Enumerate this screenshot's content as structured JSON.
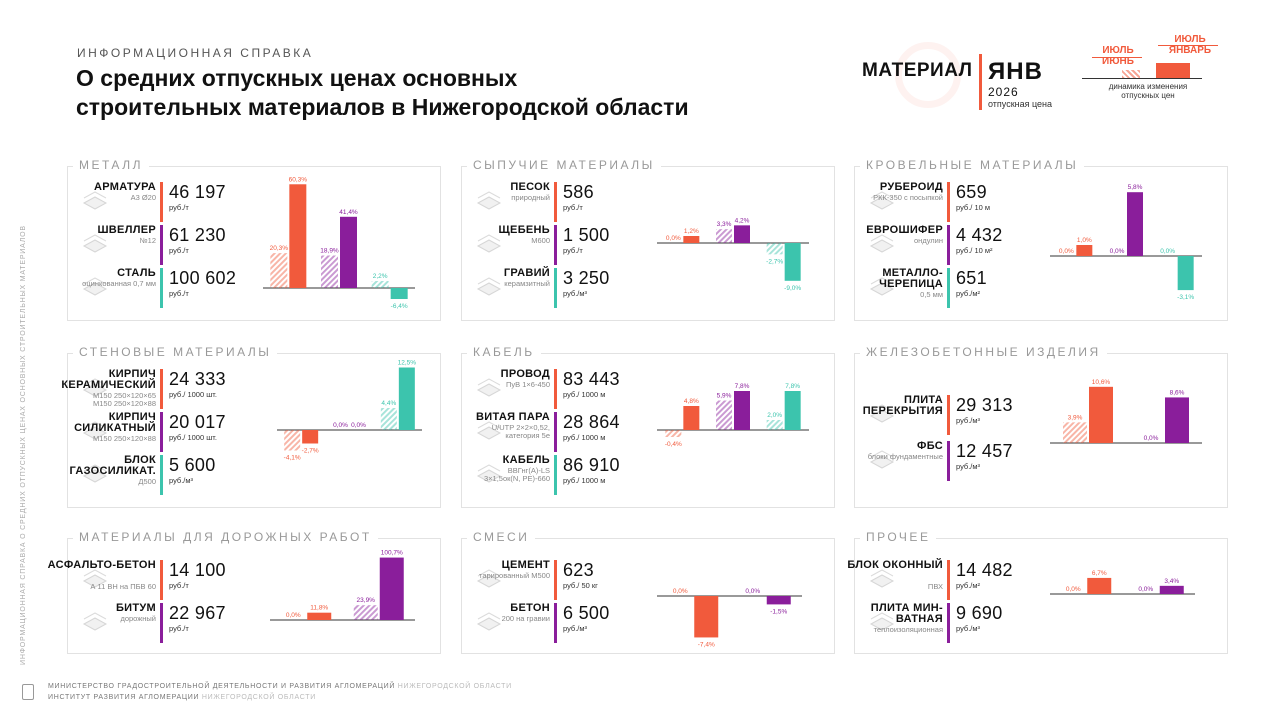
{
  "header": {
    "kicker": "ИНФОРМАЦИОННАЯ СПРАВКА",
    "title_line1": "О средних отпускных ценах основных",
    "title_line2": "строительных материалов в Нижегородской области"
  },
  "vertical_text": "ИНФОРМАЦИОННАЯ СПРАВКА О СРЕДНИХ ОТПУСКНЫХ ЦЕНАХ ОСНОВНЫХ СТРОИТЕЛЬНЫХ МАТЕРИАЛОВ",
  "legend": {
    "material_label": "МАТЕРИАЛ",
    "month": "ЯНВ",
    "year": "2026",
    "price_label": "отпускная цена",
    "top_label_1": "ИЮЛЬ",
    "top_label_2": "ЯНВАРЬ",
    "left_label_1": "ИЮЛЬ",
    "left_label_2": "ИЮНЬ",
    "note": "динамика изменения отпускных цен"
  },
  "colors": {
    "orange": "#f15a3c",
    "purple": "#8a1e9b",
    "teal": "#3cc4ad"
  },
  "footer": {
    "line1_dark": "МИНИСТЕРСТВО ГРАДОСТРОИТЕЛЬНОЙ ДЕЯТЕЛЬНОСТИ И РАЗВИТИЯ АГЛОМЕРАЦИЙ",
    "line1_light": "НИЖЕГОРОДСКОЙ ОБЛАСТИ",
    "line2_dark": "ИНСТИТУТ РАЗВИТИЯ АГЛОМЕРАЦИИ",
    "line2_light": "НИЖЕГОРОДСКОЙ ОБЛАСТИ"
  },
  "panels": [
    {
      "title": "МЕТАЛЛ",
      "items": [
        {
          "name": "АРМАТУРА",
          "sub": "А3 Ø20",
          "value": "46 197",
          "unit": "руб./т",
          "icon": "rebar-icon"
        },
        {
          "name": "ШВЕЛЛЕР",
          "sub": "№12",
          "value": "61 230",
          "unit": "руб./т",
          "icon": "channel-icon"
        },
        {
          "name": "СТАЛЬ",
          "sub": "оцинкованная 0,7 мм",
          "value": "100 602",
          "unit": "руб./т",
          "icon": "steel-sheet-icon"
        }
      ]
    },
    {
      "title": "СЫПУЧИЕ МАТЕРИАЛЫ",
      "items": [
        {
          "name": "ПЕСОК",
          "sub": "природный",
          "value": "586",
          "unit": "руб./т",
          "icon": "sand-icon"
        },
        {
          "name": "ЩЕБЕНЬ",
          "sub": "М600",
          "value": "1 500",
          "unit": "руб./т",
          "icon": "gravel-icon"
        },
        {
          "name": "ГРАВИЙ",
          "sub": "керамзитный",
          "value": "3 250",
          "unit": "руб./м³",
          "icon": "expanded-clay-icon"
        }
      ]
    },
    {
      "title": "КРОВЕЛЬНЫЕ МАТЕРИАЛЫ",
      "items": [
        {
          "name": "РУБЕРОИД",
          "sub": "РКК-350 с посыпкой",
          "value": "659",
          "unit": "руб./ 10 м",
          "icon": "roll-roofing-icon"
        },
        {
          "name": "ЕВРОШИФЕР",
          "sub": "ондулин",
          "value": "4 432",
          "unit": "руб./ 10 м²",
          "icon": "ondulin-icon"
        },
        {
          "name": "МЕТАЛЛО-ЧЕРЕПИЦА",
          "sub": "0,5 мм",
          "value": "651",
          "unit": "руб./м²",
          "icon": "metal-tile-icon"
        }
      ]
    },
    {
      "title": "СТЕНОВЫЕ МАТЕРИАЛЫ",
      "items": [
        {
          "name": "КИРПИЧ КЕРАМИЧЕСКИЙ",
          "sub": "М150 250×120×65 М150 250×120×88",
          "value": "24 333",
          "unit": "руб./ 1000 шт.",
          "icon": "brick-icon"
        },
        {
          "name": "КИРПИЧ СИЛИКАТНЫЙ",
          "sub": "М150 250×120×88",
          "value": "20 017",
          "unit": "руб./ 1000 шт.",
          "icon": "silicate-brick-icon"
        },
        {
          "name": "БЛОК ГАЗОСИЛИКАТ.",
          "sub": "Д500",
          "value": "5 600",
          "unit": "руб./м³",
          "icon": "aerated-block-icon"
        }
      ]
    },
    {
      "title": "КАБЕЛЬ",
      "items": [
        {
          "name": "ПРОВОД",
          "sub": "ПуВ 1×6-450",
          "value": "83 443",
          "unit": "руб./ 1000 м",
          "icon": "wire-icon"
        },
        {
          "name": "ВИТАЯ ПАРА",
          "sub": "U/UTP 2×2×0,52, категория 5е",
          "value": "28 864",
          "unit": "руб./ 1000 м",
          "icon": "twisted-pair-icon"
        },
        {
          "name": "КАБЕЛЬ",
          "sub": "ВВГнг(А)-LS 3×1,5ок(N, PE)-660",
          "value": "86 910",
          "unit": "руб./ 1000 м",
          "icon": "cable-icon"
        }
      ]
    },
    {
      "title": "ЖЕЛЕЗОБЕТОННЫЕ ИЗДЕЛИЯ",
      "items": [
        {
          "name": "ПЛИТА ПЕРЕКРЫТИЯ",
          "sub": "",
          "value": "29 313",
          "unit": "руб./м³",
          "icon": "floor-slab-icon"
        },
        {
          "name": "ФБС",
          "sub": "блоки фундаментные",
          "value": "12 457",
          "unit": "руб./м³",
          "icon": "foundation-block-icon"
        }
      ]
    },
    {
      "title": "МАТЕРИАЛЫ ДЛЯ ДОРОЖНЫХ РАБОТ",
      "items": [
        {
          "name": "АСФАЛЬТО-БЕТОН",
          "sub": "А 11 ВН на ПБВ 60",
          "value": "14 100",
          "unit": "руб./т",
          "icon": "asphalt-icon"
        },
        {
          "name": "БИТУМ",
          "sub": "дорожный",
          "value": "22 967",
          "unit": "руб./т",
          "icon": "bitumen-icon"
        }
      ]
    },
    {
      "title": "СМЕСИ",
      "items": [
        {
          "name": "ЦЕМЕНТ",
          "sub": "тарированный М500",
          "value": "623",
          "unit": "руб./ 50 кг",
          "icon": "cement-bag-icon"
        },
        {
          "name": "БЕТОН",
          "sub": "200 на гравии",
          "value": "6 500",
          "unit": "руб./м³",
          "icon": "concrete-mixer-icon"
        }
      ]
    },
    {
      "title": "ПРОЧЕЕ",
      "items": [
        {
          "name": "БЛОК ОКОННЫЙ",
          "sub": "ПВХ",
          "value": "14 482",
          "unit": "руб./м²",
          "icon": "window-icon"
        },
        {
          "name": "ПЛИТА МИН-ВАТНАЯ",
          "sub": "теплоизоляционная",
          "value": "9 690",
          "unit": "руб./м³",
          "icon": "mineral-wool-icon"
        }
      ]
    }
  ],
  "chart_data": [
    {
      "type": "bar",
      "title": "МЕТАЛЛ",
      "categories": [
        "АРМАТУРА",
        "ШВЕЛЛЕР",
        "СТАЛЬ"
      ],
      "series": [
        {
          "name": "ИЮЛЬ / ИЮНЬ",
          "values": [
            20.3,
            18.9,
            2.2
          ],
          "labels": [
            "20,3%",
            "18,9%",
            "2,2%"
          ]
        },
        {
          "name": "ИЮЛЬ / ЯНВАРЬ",
          "values": [
            60.3,
            41.4,
            -6.4
          ],
          "labels": [
            "60,3%",
            "41,4%",
            "-6,4%"
          ]
        }
      ]
    },
    {
      "type": "bar",
      "title": "СЫПУЧИЕ МАТЕРИАЛЫ",
      "categories": [
        "ПЕСОК",
        "ЩЕБЕНЬ",
        "ГРАВИЙ"
      ],
      "series": [
        {
          "name": "ИЮЛЬ / ИЮНЬ",
          "values": [
            0.0,
            3.3,
            -2.7
          ],
          "labels": [
            "0,0%",
            "3,3%",
            "-2,7%"
          ]
        },
        {
          "name": "ИЮЛЬ / ЯНВАРЬ",
          "values": [
            1.2,
            4.2,
            -9.0
          ],
          "labels": [
            "1,2%",
            "4,2%",
            "-9,0%"
          ]
        }
      ]
    },
    {
      "type": "bar",
      "title": "КРОВЕЛЬНЫЕ МАТЕРИАЛЫ",
      "categories": [
        "РУБЕРОИД",
        "ЕВРОШИФЕР",
        "МЕТАЛЛО-ЧЕРЕПИЦА"
      ],
      "series": [
        {
          "name": "ИЮЛЬ / ИЮНЬ",
          "values": [
            0.0,
            0.0,
            0.0
          ],
          "labels": [
            "0,0%",
            "0,0%",
            "0,0%"
          ]
        },
        {
          "name": "ИЮЛЬ / ЯНВАРЬ",
          "values": [
            1.0,
            5.8,
            -3.1
          ],
          "labels": [
            "1,0%",
            "5,8%",
            "-3,1%"
          ]
        }
      ]
    },
    {
      "type": "bar",
      "title": "СТЕНОВЫЕ МАТЕРИАЛЫ",
      "categories": [
        "КИРПИЧ КЕРАМИЧЕСКИЙ",
        "КИРПИЧ СИЛИКАТНЫЙ",
        "БЛОК ГАЗОСИЛИКАТ."
      ],
      "series": [
        {
          "name": "ИЮЛЬ / ИЮНЬ",
          "values": [
            -4.1,
            0.0,
            4.4
          ],
          "labels": [
            "-4,1%",
            "0,0%",
            "4,4%"
          ]
        },
        {
          "name": "ИЮЛЬ / ЯНВАРЬ",
          "values": [
            -2.7,
            0.0,
            12.5
          ],
          "labels": [
            "-2,7%",
            "0,0%",
            "12,5%"
          ]
        }
      ]
    },
    {
      "type": "bar",
      "title": "КАБЕЛЬ",
      "categories": [
        "ПРОВОД",
        "ВИТАЯ ПАРА",
        "КАБЕЛЬ"
      ],
      "series": [
        {
          "name": "ИЮЛЬ / ИЮНЬ",
          "values": [
            -0.4,
            5.9,
            2.0
          ],
          "labels": [
            "-0,4%",
            "5,9%",
            "2,0%"
          ]
        },
        {
          "name": "ИЮЛЬ / ЯНВАРЬ",
          "values": [
            4.8,
            7.8,
            7.8
          ],
          "labels": [
            "4,8%",
            "7,8%",
            "7,8%"
          ]
        }
      ]
    },
    {
      "type": "bar",
      "title": "ЖЕЛЕЗОБЕТОННЫЕ ИЗДЕЛИЯ",
      "categories": [
        "ПЛИТА ПЕРЕКРЫТИЯ",
        "ФБС"
      ],
      "series": [
        {
          "name": "ИЮЛЬ / ИЮНЬ",
          "values": [
            3.9,
            0.0
          ],
          "labels": [
            "3,9%",
            "0,0%"
          ]
        },
        {
          "name": "ИЮЛЬ / ЯНВАРЬ",
          "values": [
            10.6,
            8.6
          ],
          "labels": [
            "10,6%",
            "8,6%"
          ]
        }
      ]
    },
    {
      "type": "bar",
      "title": "МАТЕРИАЛЫ ДЛЯ ДОРОЖНЫХ РАБОТ",
      "categories": [
        "АСФАЛЬТО-БЕТОН",
        "БИТУМ"
      ],
      "series": [
        {
          "name": "ИЮЛЬ / ИЮНЬ",
          "values": [
            0.0,
            23.9
          ],
          "labels": [
            "0,0%",
            "23,9%"
          ]
        },
        {
          "name": "ИЮЛЬ / ЯНВАРЬ",
          "values": [
            11.8,
            100.7
          ],
          "labels": [
            "11,8%",
            "100,7%"
          ]
        }
      ]
    },
    {
      "type": "bar",
      "title": "СМЕСИ",
      "categories": [
        "ЦЕМЕНТ",
        "БЕТОН"
      ],
      "series": [
        {
          "name": "ИЮЛЬ / ИЮНЬ",
          "values": [
            0.0,
            0.0
          ],
          "labels": [
            "0,0%",
            "0,0%"
          ]
        },
        {
          "name": "ИЮЛЬ / ЯНВАРЬ",
          "values": [
            -7.4,
            -1.5
          ],
          "labels": [
            "-7,4%",
            "-1,5%"
          ]
        }
      ]
    },
    {
      "type": "bar",
      "title": "ПРОЧЕЕ",
      "categories": [
        "БЛОК ОКОННЫЙ",
        "ПЛИТА МИН-ВАТНАЯ"
      ],
      "series": [
        {
          "name": "ИЮЛЬ / ИЮНЬ",
          "values": [
            0.0,
            0.0
          ],
          "labels": [
            "0,0%",
            "0,0%"
          ]
        },
        {
          "name": "ИЮЛЬ / ЯНВАРЬ",
          "values": [
            6.7,
            3.4
          ],
          "labels": [
            "6,7%",
            "3,4%"
          ]
        }
      ]
    }
  ]
}
